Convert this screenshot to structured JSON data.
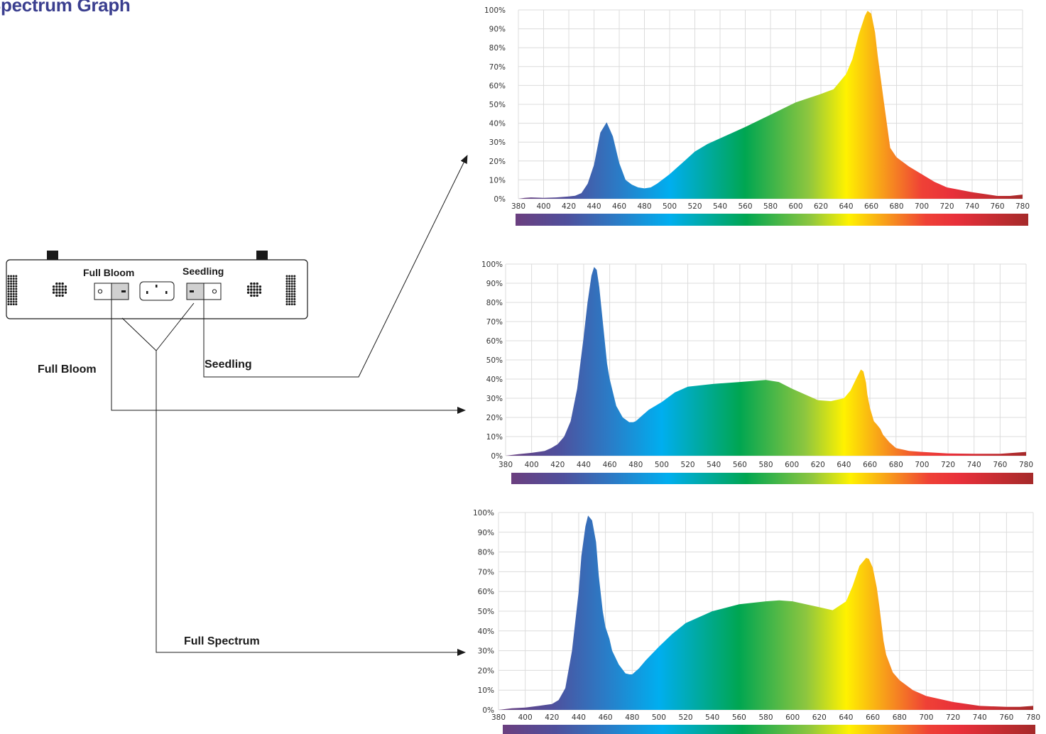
{
  "title": "Spectrum Graph",
  "device": {
    "label_full_bloom": "Full Bloom",
    "label_seedling": "Seedling"
  },
  "connectors": {
    "full_bloom": "Full Bloom",
    "seedling": "Seedling",
    "full_spectrum": "Full Spectrum"
  },
  "colors": {
    "title": "#3b3f8f",
    "violet": "#6b3f7f",
    "blue": "#2a7cc7",
    "cyan": "#00aeef",
    "green": "#00a651",
    "yellow": "#fff200",
    "orange": "#f7941d",
    "red": "#e8303a",
    "deep_red": "#a52a2a"
  },
  "chart_data": [
    {
      "type": "area",
      "mode": "Seedling",
      "xlabel": "",
      "ylabel": "",
      "xlim": [
        380,
        780
      ],
      "ylim": [
        0,
        100
      ],
      "x_ticks": [
        "380",
        "400",
        "420",
        "440",
        "460",
        "480",
        "500",
        "520",
        "540",
        "560",
        "580",
        "600",
        "620",
        "640",
        "660",
        "680",
        "700",
        "720",
        "740",
        "760",
        "780"
      ],
      "y_ticks": [
        "0%",
        "10%",
        "20%",
        "30%",
        "40%",
        "50%",
        "60%",
        "70%",
        "80%",
        "90%",
        "100%"
      ],
      "grid": true,
      "x": [
        380,
        385,
        390,
        400,
        410,
        420,
        425,
        430,
        435,
        440,
        445,
        450,
        455,
        460,
        465,
        470,
        475,
        480,
        485,
        490,
        495,
        500,
        505,
        510,
        520,
        530,
        540,
        560,
        580,
        600,
        620,
        630,
        640,
        645,
        650,
        655,
        657,
        660,
        663,
        665,
        670,
        675,
        680,
        690,
        700,
        710,
        720,
        740,
        760,
        770,
        780
      ],
      "values": [
        0,
        0.5,
        0.7,
        0.5,
        0.7,
        1.2,
        1.6,
        3,
        8,
        18,
        35,
        40.5,
        33,
        19,
        10,
        7.5,
        6,
        5.5,
        6,
        8,
        10.5,
        13,
        16,
        19,
        25,
        29,
        32,
        38,
        44.5,
        51,
        55.5,
        58,
        66,
        74,
        87,
        97,
        99.5,
        98,
        88,
        76,
        51,
        27,
        22,
        17,
        13,
        9,
        6,
        3.5,
        1.5,
        1.5,
        2.2
      ]
    },
    {
      "type": "area",
      "mode": "Full Bloom",
      "xlabel": "",
      "ylabel": "",
      "xlim": [
        380,
        780
      ],
      "ylim": [
        0,
        100
      ],
      "x_ticks": [
        "380",
        "400",
        "420",
        "440",
        "460",
        "480",
        "500",
        "520",
        "540",
        "560",
        "580",
        "600",
        "620",
        "640",
        "660",
        "680",
        "700",
        "720",
        "740",
        "760",
        "780"
      ],
      "y_ticks": [
        "0%",
        "10%",
        "20%",
        "30%",
        "40%",
        "50%",
        "60%",
        "70%",
        "80%",
        "90%",
        "100%"
      ],
      "grid": true,
      "x": [
        380,
        390,
        400,
        410,
        415,
        420,
        425,
        430,
        435,
        440,
        443,
        446,
        448,
        450,
        452,
        455,
        458,
        460,
        465,
        470,
        475,
        478,
        480,
        485,
        490,
        500,
        510,
        520,
        540,
        560,
        580,
        590,
        600,
        610,
        620,
        630,
        640,
        645,
        650,
        653,
        655,
        657,
        658,
        660,
        663,
        665,
        668,
        670,
        675,
        680,
        690,
        700,
        720,
        740,
        760,
        780
      ],
      "values": [
        0,
        0.8,
        1.5,
        2.5,
        4,
        6,
        10,
        18,
        35,
        62,
        80,
        94,
        98.5,
        97,
        88,
        68,
        48,
        40,
        26,
        20,
        17.5,
        17.5,
        18,
        21,
        24,
        28,
        33,
        36,
        37.5,
        38.5,
        39.5,
        38.5,
        35,
        32,
        29,
        28.5,
        30,
        34,
        41,
        45,
        44,
        38,
        32,
        25,
        18,
        16.5,
        14,
        11,
        7,
        4,
        2.5,
        2,
        1.2,
        1,
        1,
        2
      ]
    },
    {
      "type": "area",
      "mode": "Full Spectrum",
      "xlabel": "",
      "ylabel": "",
      "xlim": [
        380,
        780
      ],
      "ylim": [
        0,
        100
      ],
      "x_ticks": [
        "380",
        "400",
        "420",
        "440",
        "460",
        "480",
        "500",
        "520",
        "540",
        "560",
        "580",
        "600",
        "620",
        "640",
        "660",
        "680",
        "700",
        "720",
        "740",
        "760",
        "780"
      ],
      "y_ticks": [
        "0%",
        "10%",
        "20%",
        "30%",
        "40%",
        "50%",
        "60%",
        "70%",
        "80%",
        "90%",
        "100%"
      ],
      "grid": true,
      "x": [
        380,
        390,
        400,
        410,
        420,
        425,
        430,
        435,
        440,
        442,
        445,
        447,
        450,
        453,
        455,
        458,
        460,
        463,
        465,
        470,
        475,
        478,
        480,
        485,
        490,
        500,
        510,
        520,
        540,
        560,
        580,
        590,
        600,
        610,
        620,
        630,
        640,
        645,
        650,
        655,
        657,
        660,
        663,
        665,
        668,
        670,
        675,
        680,
        690,
        700,
        720,
        740,
        760,
        770,
        780
      ],
      "values": [
        0,
        0.8,
        1.2,
        2,
        3,
        5,
        11,
        30,
        60,
        78,
        93,
        98.5,
        96,
        85,
        68,
        50,
        42,
        36,
        30,
        23,
        18.5,
        18,
        18,
        21,
        25,
        32,
        38.5,
        44,
        50,
        53.5,
        55,
        55.5,
        55,
        53.5,
        52,
        50.5,
        55,
        63,
        73,
        77,
        76.5,
        72,
        62,
        52,
        35,
        28,
        19,
        15,
        10,
        7,
        4,
        2,
        1.5,
        1.5,
        2
      ]
    }
  ]
}
